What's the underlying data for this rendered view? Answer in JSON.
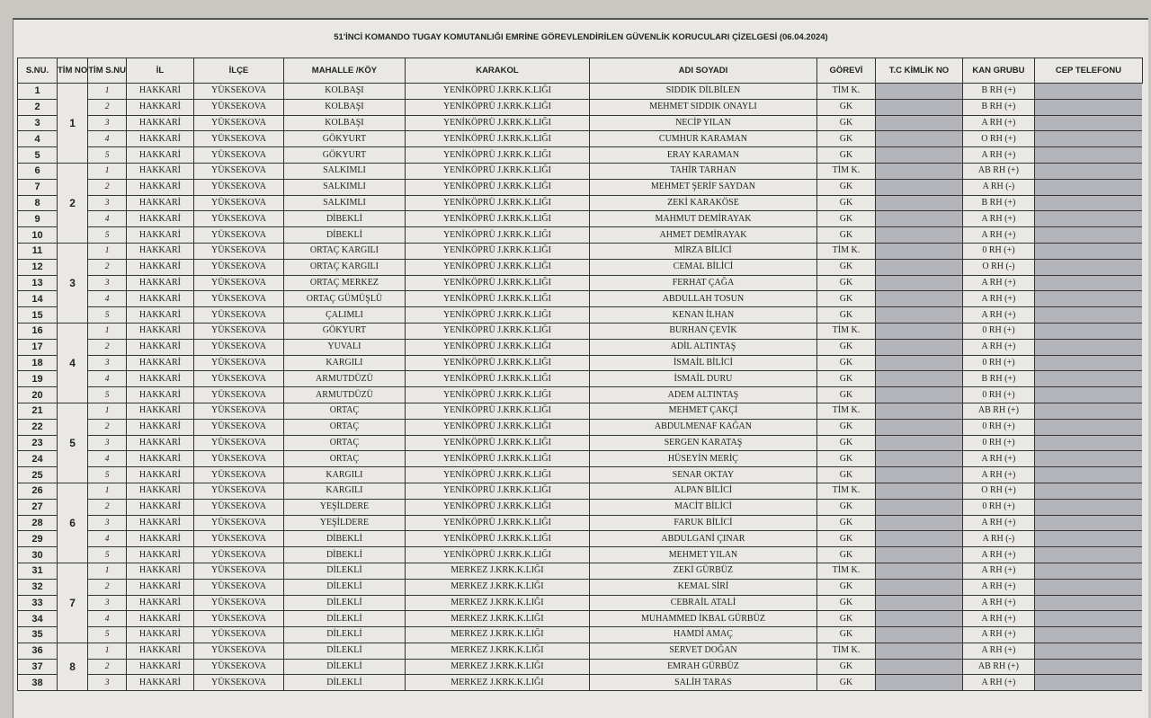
{
  "title": "51'İNCİ KOMANDO TUGAY KOMUTANLIĞI EMRİNE GÖREVLENDİRİLEN GÜVENLİK KORUCULARI ÇİZELGESİ (06.04.2024)",
  "headers": [
    "S.NU.",
    "TİM NO",
    "TİM S.NU",
    "İL",
    "İLÇE",
    "MAHALLE /KÖY",
    "KARAKOL",
    "ADI  SOYADI",
    "GÖREVİ",
    "T.C KİMLİK NO",
    "KAN GRUBU",
    "CEP TELEFONU"
  ],
  "redaction_color": "#b3b3ba",
  "teams": [
    {
      "no": "1",
      "size": 5
    },
    {
      "no": "2",
      "size": 5
    },
    {
      "no": "3",
      "size": 5
    },
    {
      "no": "4",
      "size": 5
    },
    {
      "no": "5",
      "size": 5
    },
    {
      "no": "6",
      "size": 5
    },
    {
      "no": "7",
      "size": 5
    },
    {
      "no": "8",
      "size": 3
    }
  ],
  "rows": [
    [
      "1",
      "1",
      "HAKKARİ",
      "YÜKSEKOVA",
      "KOLBAŞI",
      "YENİKÖPRÜ J.KRK.K.LIĞI",
      "SIDDIK DİLBİLEN",
      "TİM K.",
      "B RH (+)"
    ],
    [
      "2",
      "2",
      "HAKKARİ",
      "YÜKSEKOVA",
      "KOLBAŞI",
      "YENİKÖPRÜ J.KRK.K.LIĞI",
      "MEHMET SIDDIK ONAYLI",
      "GK",
      "B RH (+)"
    ],
    [
      "3",
      "3",
      "HAKKARİ",
      "YÜKSEKOVA",
      "KOLBAŞI",
      "YENİKÖPRÜ J.KRK.K.LIĞI",
      "NECİP YILAN",
      "GK",
      "A RH (+)"
    ],
    [
      "4",
      "4",
      "HAKKARİ",
      "YÜKSEKOVA",
      "GÖKYURT",
      "YENİKÖPRÜ J.KRK.K.LIĞI",
      "CUMHUR KARAMAN",
      "GK",
      "O RH (+)"
    ],
    [
      "5",
      "5",
      "HAKKARİ",
      "YÜKSEKOVA",
      "GÖKYURT",
      "YENİKÖPRÜ J.KRK.K.LIĞI",
      "ERAY KARAMAN",
      "GK",
      "A RH (+)"
    ],
    [
      "6",
      "1",
      "HAKKARİ",
      "YÜKSEKOVA",
      "SALKIMLI",
      "YENİKÖPRÜ J.KRK.K.LIĞI",
      "TAHİR TARHAN",
      "TİM K.",
      "AB RH (+)"
    ],
    [
      "7",
      "2",
      "HAKKARİ",
      "YÜKSEKOVA",
      "SALKIMLI",
      "YENİKÖPRÜ J.KRK.K.LIĞI",
      "MEHMET ŞERİF SAYDAN",
      "GK",
      "A RH (-)"
    ],
    [
      "8",
      "3",
      "HAKKARİ",
      "YÜKSEKOVA",
      "SALKIMLI",
      "YENİKÖPRÜ J.KRK.K.LIĞI",
      "ZEKİ KARAKÖSE",
      "GK",
      "B RH (+)"
    ],
    [
      "9",
      "4",
      "HAKKARİ",
      "YÜKSEKOVA",
      "DİBEKLİ",
      "YENİKÖPRÜ J.KRK.K.LIĞI",
      "MAHMUT DEMİRAYAK",
      "GK",
      "A RH (+)"
    ],
    [
      "10",
      "5",
      "HAKKARİ",
      "YÜKSEKOVA",
      "DİBEKLİ",
      "YENİKÖPRÜ J.KRK.K.LIĞI",
      "AHMET DEMİRAYAK",
      "GK",
      "A RH (+)"
    ],
    [
      "11",
      "1",
      "HAKKARİ",
      "YÜKSEKOVA",
      "ORTAÇ KARGILI",
      "YENİKÖPRÜ J.KRK.K.LIĞI",
      "MİRZA BİLİCİ",
      "TİM K.",
      "0 RH (+)"
    ],
    [
      "12",
      "2",
      "HAKKARİ",
      "YÜKSEKOVA",
      "ORTAÇ KARGILI",
      "YENİKÖPRÜ J.KRK.K.LIĞI",
      "CEMAL BİLİCİ",
      "GK",
      "O RH (-)"
    ],
    [
      "13",
      "3",
      "HAKKARİ",
      "YÜKSEKOVA",
      "ORTAÇ MERKEZ",
      "YENİKÖPRÜ J.KRK.K.LIĞI",
      "FERHAT ÇAĞA",
      "GK",
      "A RH (+)"
    ],
    [
      "14",
      "4",
      "HAKKARİ",
      "YÜKSEKOVA",
      "ORTAÇ GÜMÜŞLÜ",
      "YENİKÖPRÜ J.KRK.K.LIĞI",
      "ABDULLAH TOSUN",
      "GK",
      "A RH (+)"
    ],
    [
      "15",
      "5",
      "HAKKARİ",
      "YÜKSEKOVA",
      "ÇALIMLI",
      "YENİKÖPRÜ J.KRK.K.LIĞI",
      "KENAN İLHAN",
      "GK",
      "A RH (+)"
    ],
    [
      "16",
      "1",
      "HAKKARİ",
      "YÜKSEKOVA",
      "GÖKYURT",
      "YENİKÖPRÜ J.KRK.K.LIĞI",
      "BURHAN ÇEVİK",
      "TİM K.",
      "0 RH (+)"
    ],
    [
      "17",
      "2",
      "HAKKARİ",
      "YÜKSEKOVA",
      "YUVALI",
      "YENİKÖPRÜ J.KRK.K.LIĞI",
      "ADİL ALTINTAŞ",
      "GK",
      "A RH (+)"
    ],
    [
      "18",
      "3",
      "HAKKARİ",
      "YÜKSEKOVA",
      "KARGILI",
      "YENİKÖPRÜ J.KRK.K.LIĞI",
      "İSMAİL BİLİCİ",
      "GK",
      "0 RH (+)"
    ],
    [
      "19",
      "4",
      "HAKKARİ",
      "YÜKSEKOVA",
      "ARMUTDÜZÜ",
      "YENİKÖPRÜ J.KRK.K.LIĞI",
      "İSMAİL DURU",
      "GK",
      "B RH (+)"
    ],
    [
      "20",
      "5",
      "HAKKARİ",
      "YÜKSEKOVA",
      "ARMUTDÜZÜ",
      "YENİKÖPRÜ J.KRK.K.LIĞI",
      "ADEM ALTINTAŞ",
      "GK",
      "0 RH (+)"
    ],
    [
      "21",
      "1",
      "HAKKARİ",
      "YÜKSEKOVA",
      "ORTAÇ",
      "YENİKÖPRÜ J.KRK.K.LIĞI",
      "MEHMET ÇAKÇİ",
      "TİM K.",
      "AB RH (+)"
    ],
    [
      "22",
      "2",
      "HAKKARİ",
      "YÜKSEKOVA",
      "ORTAÇ",
      "YENİKÖPRÜ J.KRK.K.LIĞI",
      "ABDULMENAF KAĞAN",
      "GK",
      "0 RH (+)"
    ],
    [
      "23",
      "3",
      "HAKKARİ",
      "YÜKSEKOVA",
      "ORTAÇ",
      "YENİKÖPRÜ J.KRK.K.LIĞI",
      "SERGEN KARATAŞ",
      "GK",
      "0 RH (+)"
    ],
    [
      "24",
      "4",
      "HAKKARİ",
      "YÜKSEKOVA",
      "ORTAÇ",
      "YENİKÖPRÜ J.KRK.K.LIĞI",
      "HÜSEYİN MERİÇ",
      "GK",
      "A RH (+)"
    ],
    [
      "25",
      "5",
      "HAKKARİ",
      "YÜKSEKOVA",
      "KARGILI",
      "YENİKÖPRÜ J.KRK.K.LIĞI",
      "SENAR OKTAY",
      "GK",
      "A RH (+)"
    ],
    [
      "26",
      "1",
      "HAKKARİ",
      "YÜKSEKOVA",
      "KARGILI",
      "YENİKÖPRÜ J.KRK.K.LIĞI",
      "ALPAN BİLİCİ",
      "TİM K.",
      "O RH (+)"
    ],
    [
      "27",
      "2",
      "HAKKARİ",
      "YÜKSEKOVA",
      "YEŞİLDERE",
      "YENİKÖPRÜ J.KRK.K.LIĞI",
      "MACİT BİLİCİ",
      "GK",
      "0 RH (+)"
    ],
    [
      "28",
      "3",
      "HAKKARİ",
      "YÜKSEKOVA",
      "YEŞİLDERE",
      "YENİKÖPRÜ J.KRK.K.LIĞI",
      "FARUK BİLİCİ",
      "GK",
      "A RH (+)"
    ],
    [
      "29",
      "4",
      "HAKKARİ",
      "YÜKSEKOVA",
      "DİBEKLİ",
      "YENİKÖPRÜ J.KRK.K.LIĞI",
      "ABDULGANİ ÇINAR",
      "GK",
      "A RH (-)"
    ],
    [
      "30",
      "5",
      "HAKKARİ",
      "YÜKSEKOVA",
      "DİBEKLİ",
      "YENİKÖPRÜ J.KRK.K.LIĞI",
      "MEHMET YILAN",
      "GK",
      "A RH (+)"
    ],
    [
      "31",
      "1",
      "HAKKARİ",
      "YÜKSEKOVA",
      "DİLEKLİ",
      "MERKEZ J.KRK.K.LIĞI",
      "ZEKİ GÜRBÜZ",
      "TİM K.",
      "A RH (+)"
    ],
    [
      "32",
      "2",
      "HAKKARİ",
      "YÜKSEKOVA",
      "DİLEKLİ",
      "MERKEZ J.KRK.K.LIĞI",
      "KEMAL SİRİ",
      "GK",
      "A RH (+)"
    ],
    [
      "33",
      "3",
      "HAKKARİ",
      "YÜKSEKOVA",
      "DİLEKLİ",
      "MERKEZ J.KRK.K.LIĞI",
      "CEBRAİL ATALİ",
      "GK",
      "A RH (+)"
    ],
    [
      "34",
      "4",
      "HAKKARİ",
      "YÜKSEKOVA",
      "DİLEKLİ",
      "MERKEZ J.KRK.K.LIĞI",
      "MUHAMMED İKBAL GÜRBÜZ",
      "GK",
      "A RH (+)"
    ],
    [
      "35",
      "5",
      "HAKKARİ",
      "YÜKSEKOVA",
      "DİLEKLİ",
      "MERKEZ J.KRK.K.LIĞI",
      "HAMDİ AMAÇ",
      "GK",
      "A RH (+)"
    ],
    [
      "36",
      "1",
      "HAKKARİ",
      "YÜKSEKOVA",
      "DİLEKLİ",
      "MERKEZ J.KRK.K.LIĞI",
      "SERVET DOĞAN",
      "TİM K.",
      "A RH (+)"
    ],
    [
      "37",
      "2",
      "HAKKARİ",
      "YÜKSEKOVA",
      "DİLEKLİ",
      "MERKEZ J.KRK.K.LIĞI",
      "EMRAH GÜRBÜZ",
      "GK",
      "AB RH (+)"
    ],
    [
      "38",
      "3",
      "HAKKARİ",
      "YÜKSEKOVA",
      "DİLEKLİ",
      "MERKEZ J.KRK.K.LIĞI",
      "SALİH TARAS",
      "GK",
      "A RH (+)"
    ]
  ]
}
